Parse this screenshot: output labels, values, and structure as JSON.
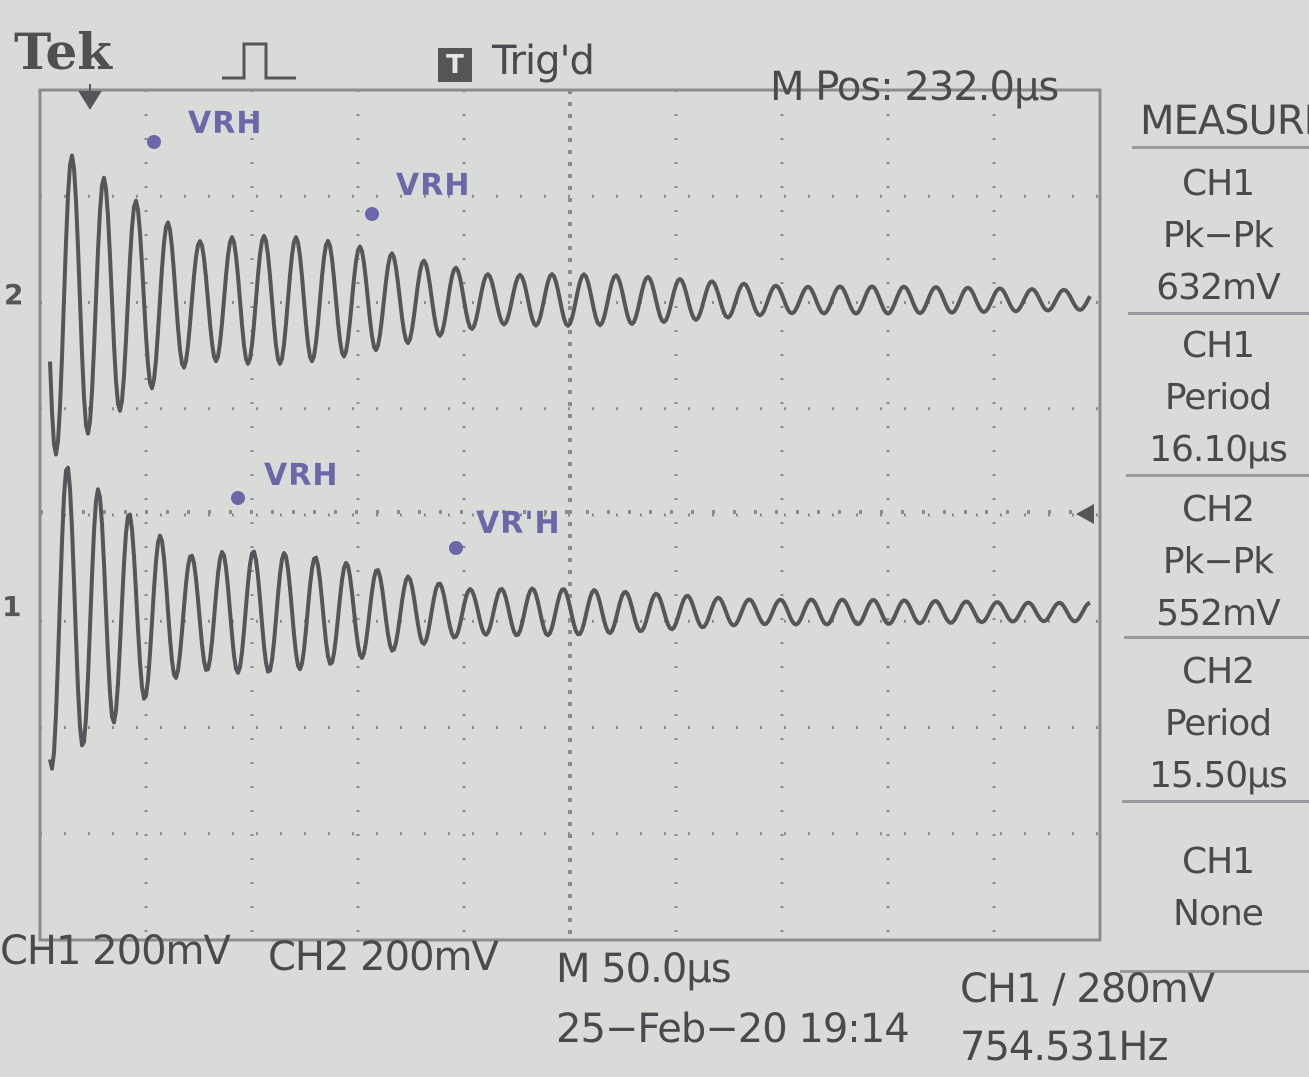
{
  "header": {
    "brand": "Tek",
    "trigger_status_icon": "T",
    "trigger_status": "Trig'd",
    "main_position": "M Pos: 232.0µs"
  },
  "waveform_labels": [
    "VRH",
    "VRH",
    "VRH",
    "VR'H"
  ],
  "channel_markers": {
    "ch2": "2",
    "ch1": "1"
  },
  "measure": {
    "title": "MEASURE",
    "items": [
      {
        "source": "CH1",
        "type": "Pk−Pk",
        "value": "632mV"
      },
      {
        "source": "CH1",
        "type": "Period",
        "value": "16.10µs"
      },
      {
        "source": "CH2",
        "type": "Pk−Pk",
        "value": "552mV"
      },
      {
        "source": "CH2",
        "type": "Period",
        "value": "15.50µs"
      },
      {
        "source": "CH1",
        "type": "None",
        "value": ""
      }
    ]
  },
  "footer": {
    "ch1_scale": "CH1  200mV",
    "ch2_scale": "CH2  200mV",
    "timebase": "M 50.0µs",
    "date_time": "25−Feb−20 19:14",
    "trigger_level": "CH1 ∕ 280mV",
    "frequency": "754.531Hz"
  },
  "colors": {
    "background": "#d9dbd9",
    "trace": "#55555a",
    "grid": "#8c8c90",
    "annotation": "#6c67a8"
  },
  "icons": [
    "pulse-trigger-icon",
    "trigger-position-arrow-icon",
    "trigger-level-arrow-icon"
  ]
}
